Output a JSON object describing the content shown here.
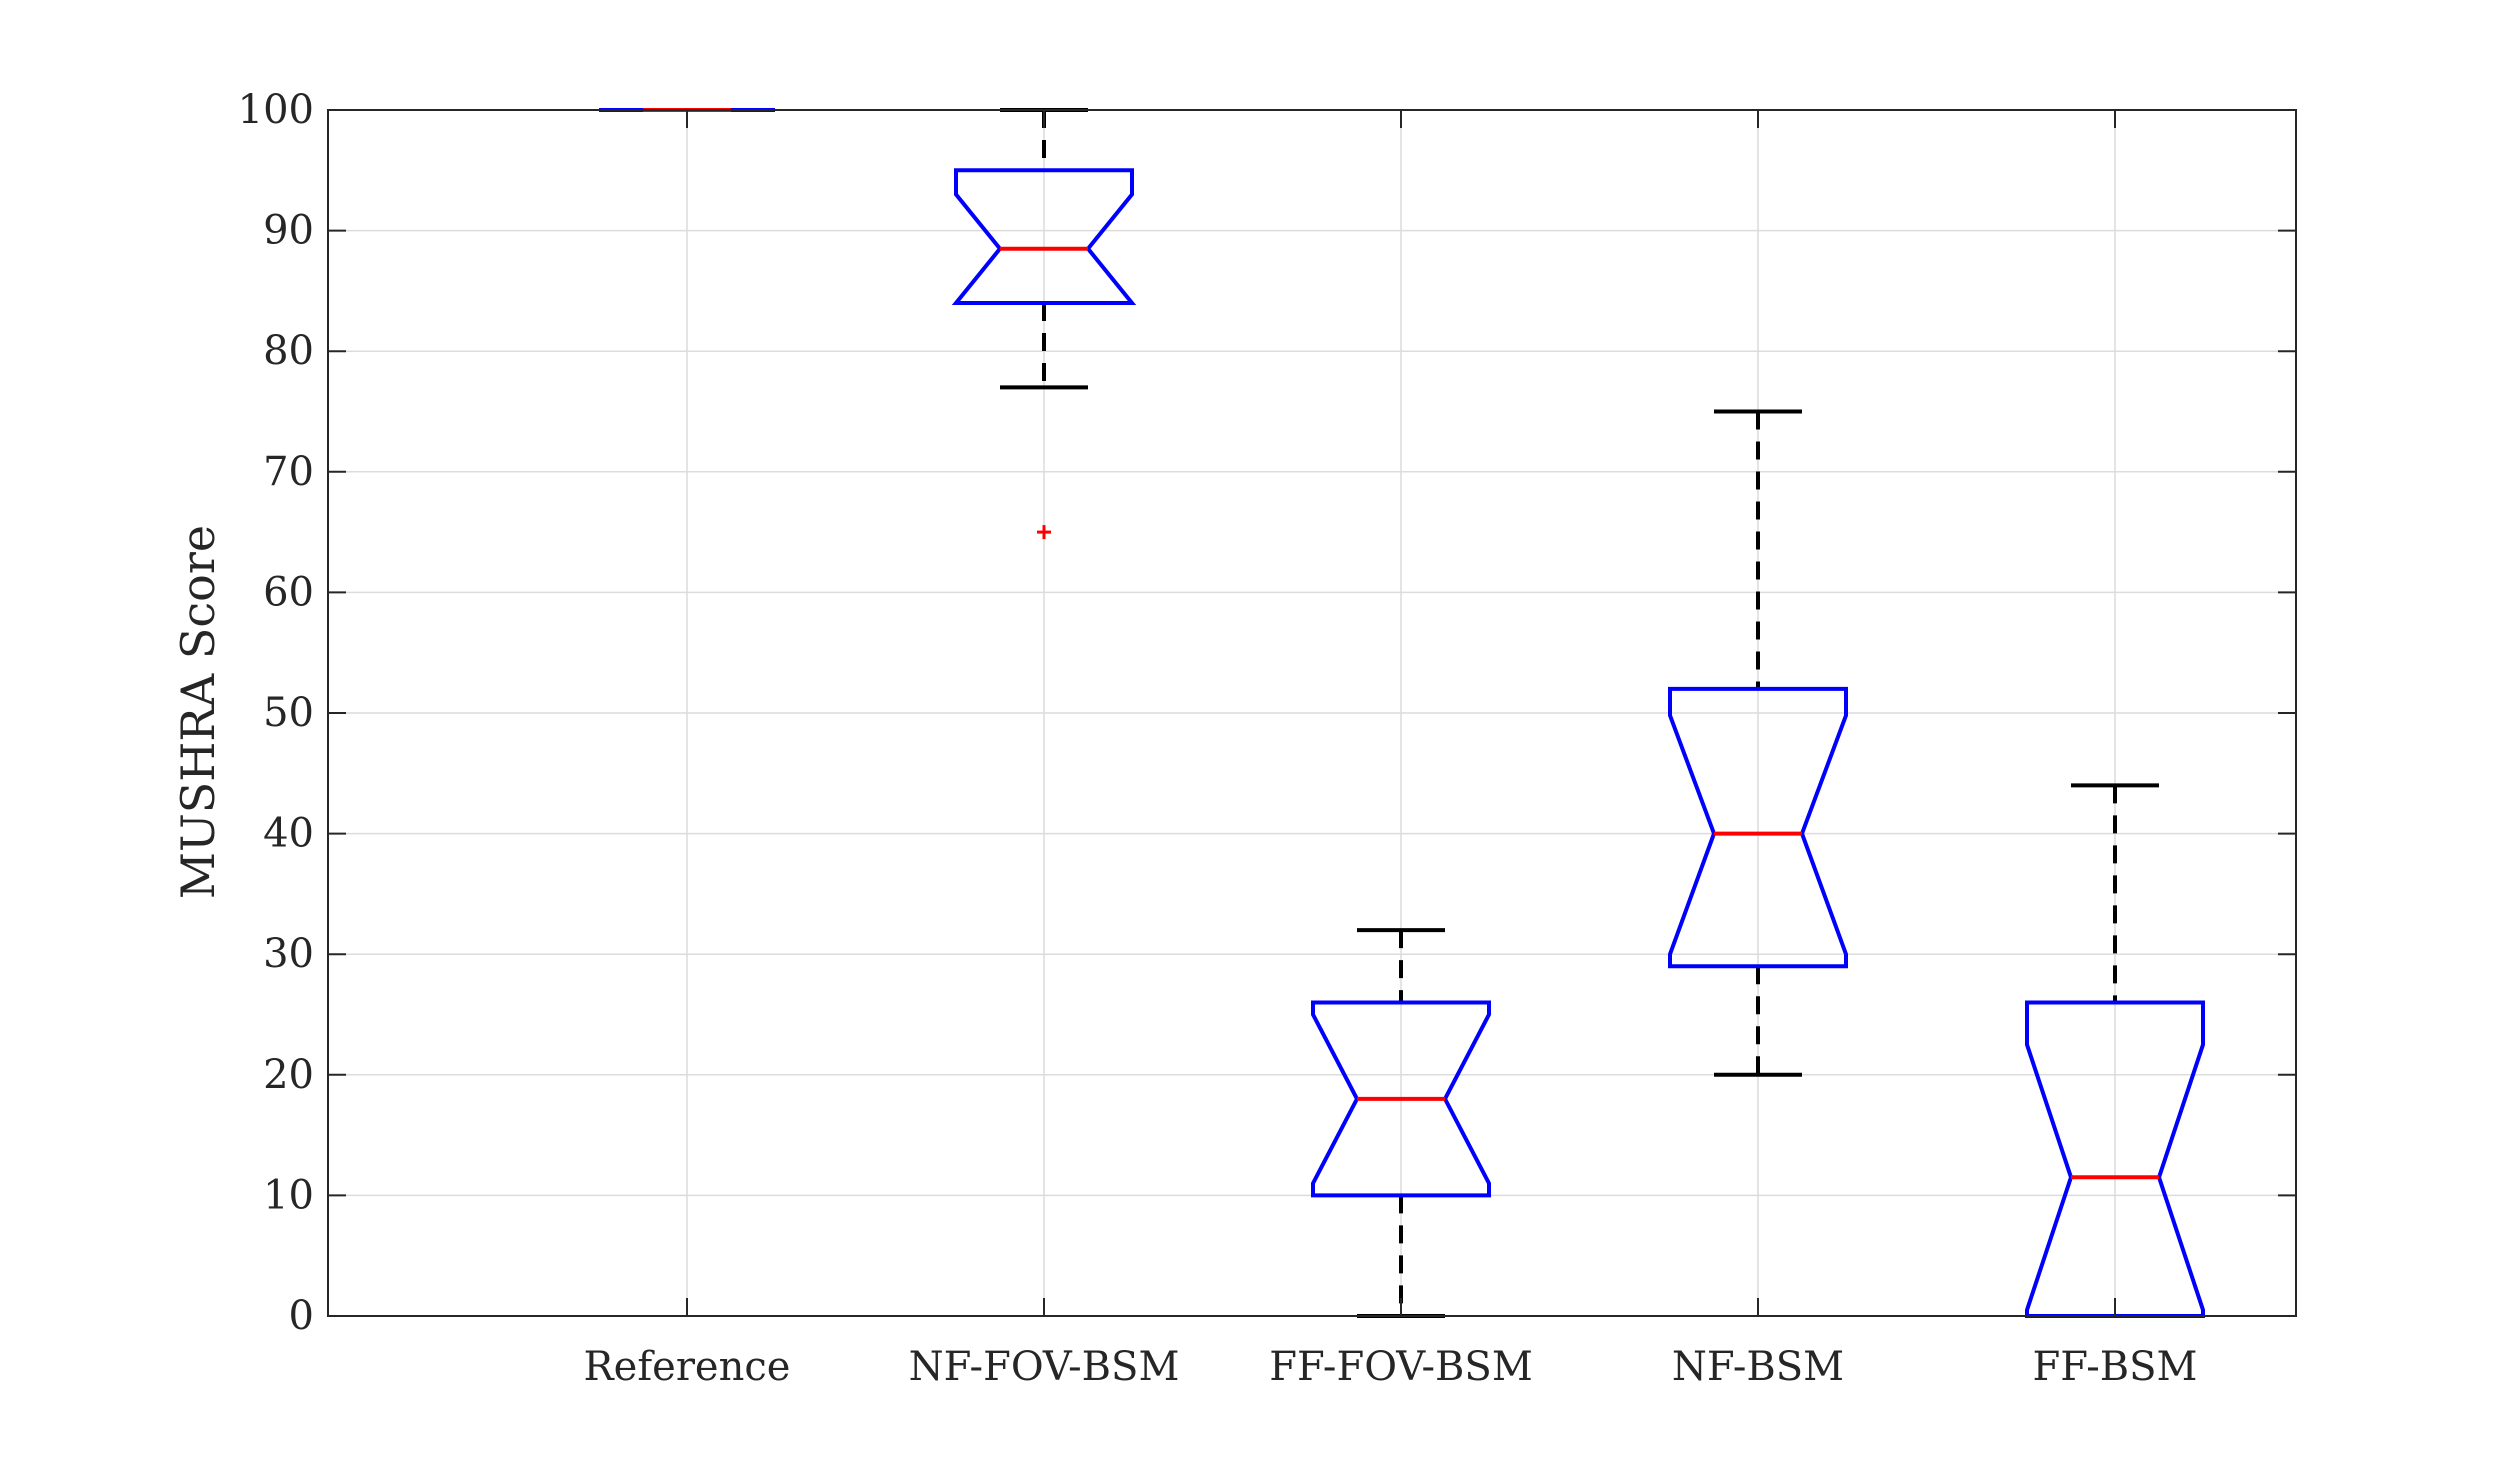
{
  "chart_data": {
    "type": "boxplot",
    "title": "",
    "xlabel": "",
    "ylabel": "MUSHRA Score",
    "ylim": [
      0,
      100
    ],
    "yticks": [
      0,
      10,
      20,
      30,
      40,
      50,
      60,
      70,
      80,
      90,
      100
    ],
    "grid": true,
    "notched": true,
    "categories": [
      "Reference",
      "NF-FOV-BSM",
      "FF-FOV-BSM",
      "NF-BSM",
      "FF-BSM"
    ],
    "boxes": [
      {
        "category": "Reference",
        "whisker_low": 100,
        "q1": 100,
        "median": 100,
        "q3": 100,
        "whisker_high": 100,
        "notch_low": 100,
        "notch_high": 100,
        "outliers": []
      },
      {
        "category": "NF-FOV-BSM",
        "whisker_low": 77,
        "q1": 84,
        "median": 88.5,
        "q3": 95,
        "whisker_high": 100,
        "notch_low": 84,
        "notch_high": 93,
        "outliers": [
          65
        ]
      },
      {
        "category": "FF-FOV-BSM",
        "whisker_low": 0,
        "q1": 10,
        "median": 18,
        "q3": 26,
        "whisker_high": 32,
        "notch_low": 11,
        "notch_high": 25,
        "outliers": []
      },
      {
        "category": "NF-BSM",
        "whisker_low": 20,
        "q1": 29,
        "median": 40,
        "q3": 52,
        "whisker_high": 75,
        "notch_low": 30,
        "notch_high": 49.8,
        "outliers": []
      },
      {
        "category": "FF-BSM",
        "whisker_low": 0,
        "q1": 0,
        "median": 11.5,
        "q3": 26,
        "whisker_high": 44,
        "notch_low": 0.5,
        "notch_high": 22.5,
        "outliers": []
      }
    ],
    "colors": {
      "box": "#0000ff",
      "median": "#ff0000",
      "whisker": "#000000",
      "outlier": "#ff0000",
      "grid": "#dcdcdc",
      "axis": "#262626"
    }
  }
}
